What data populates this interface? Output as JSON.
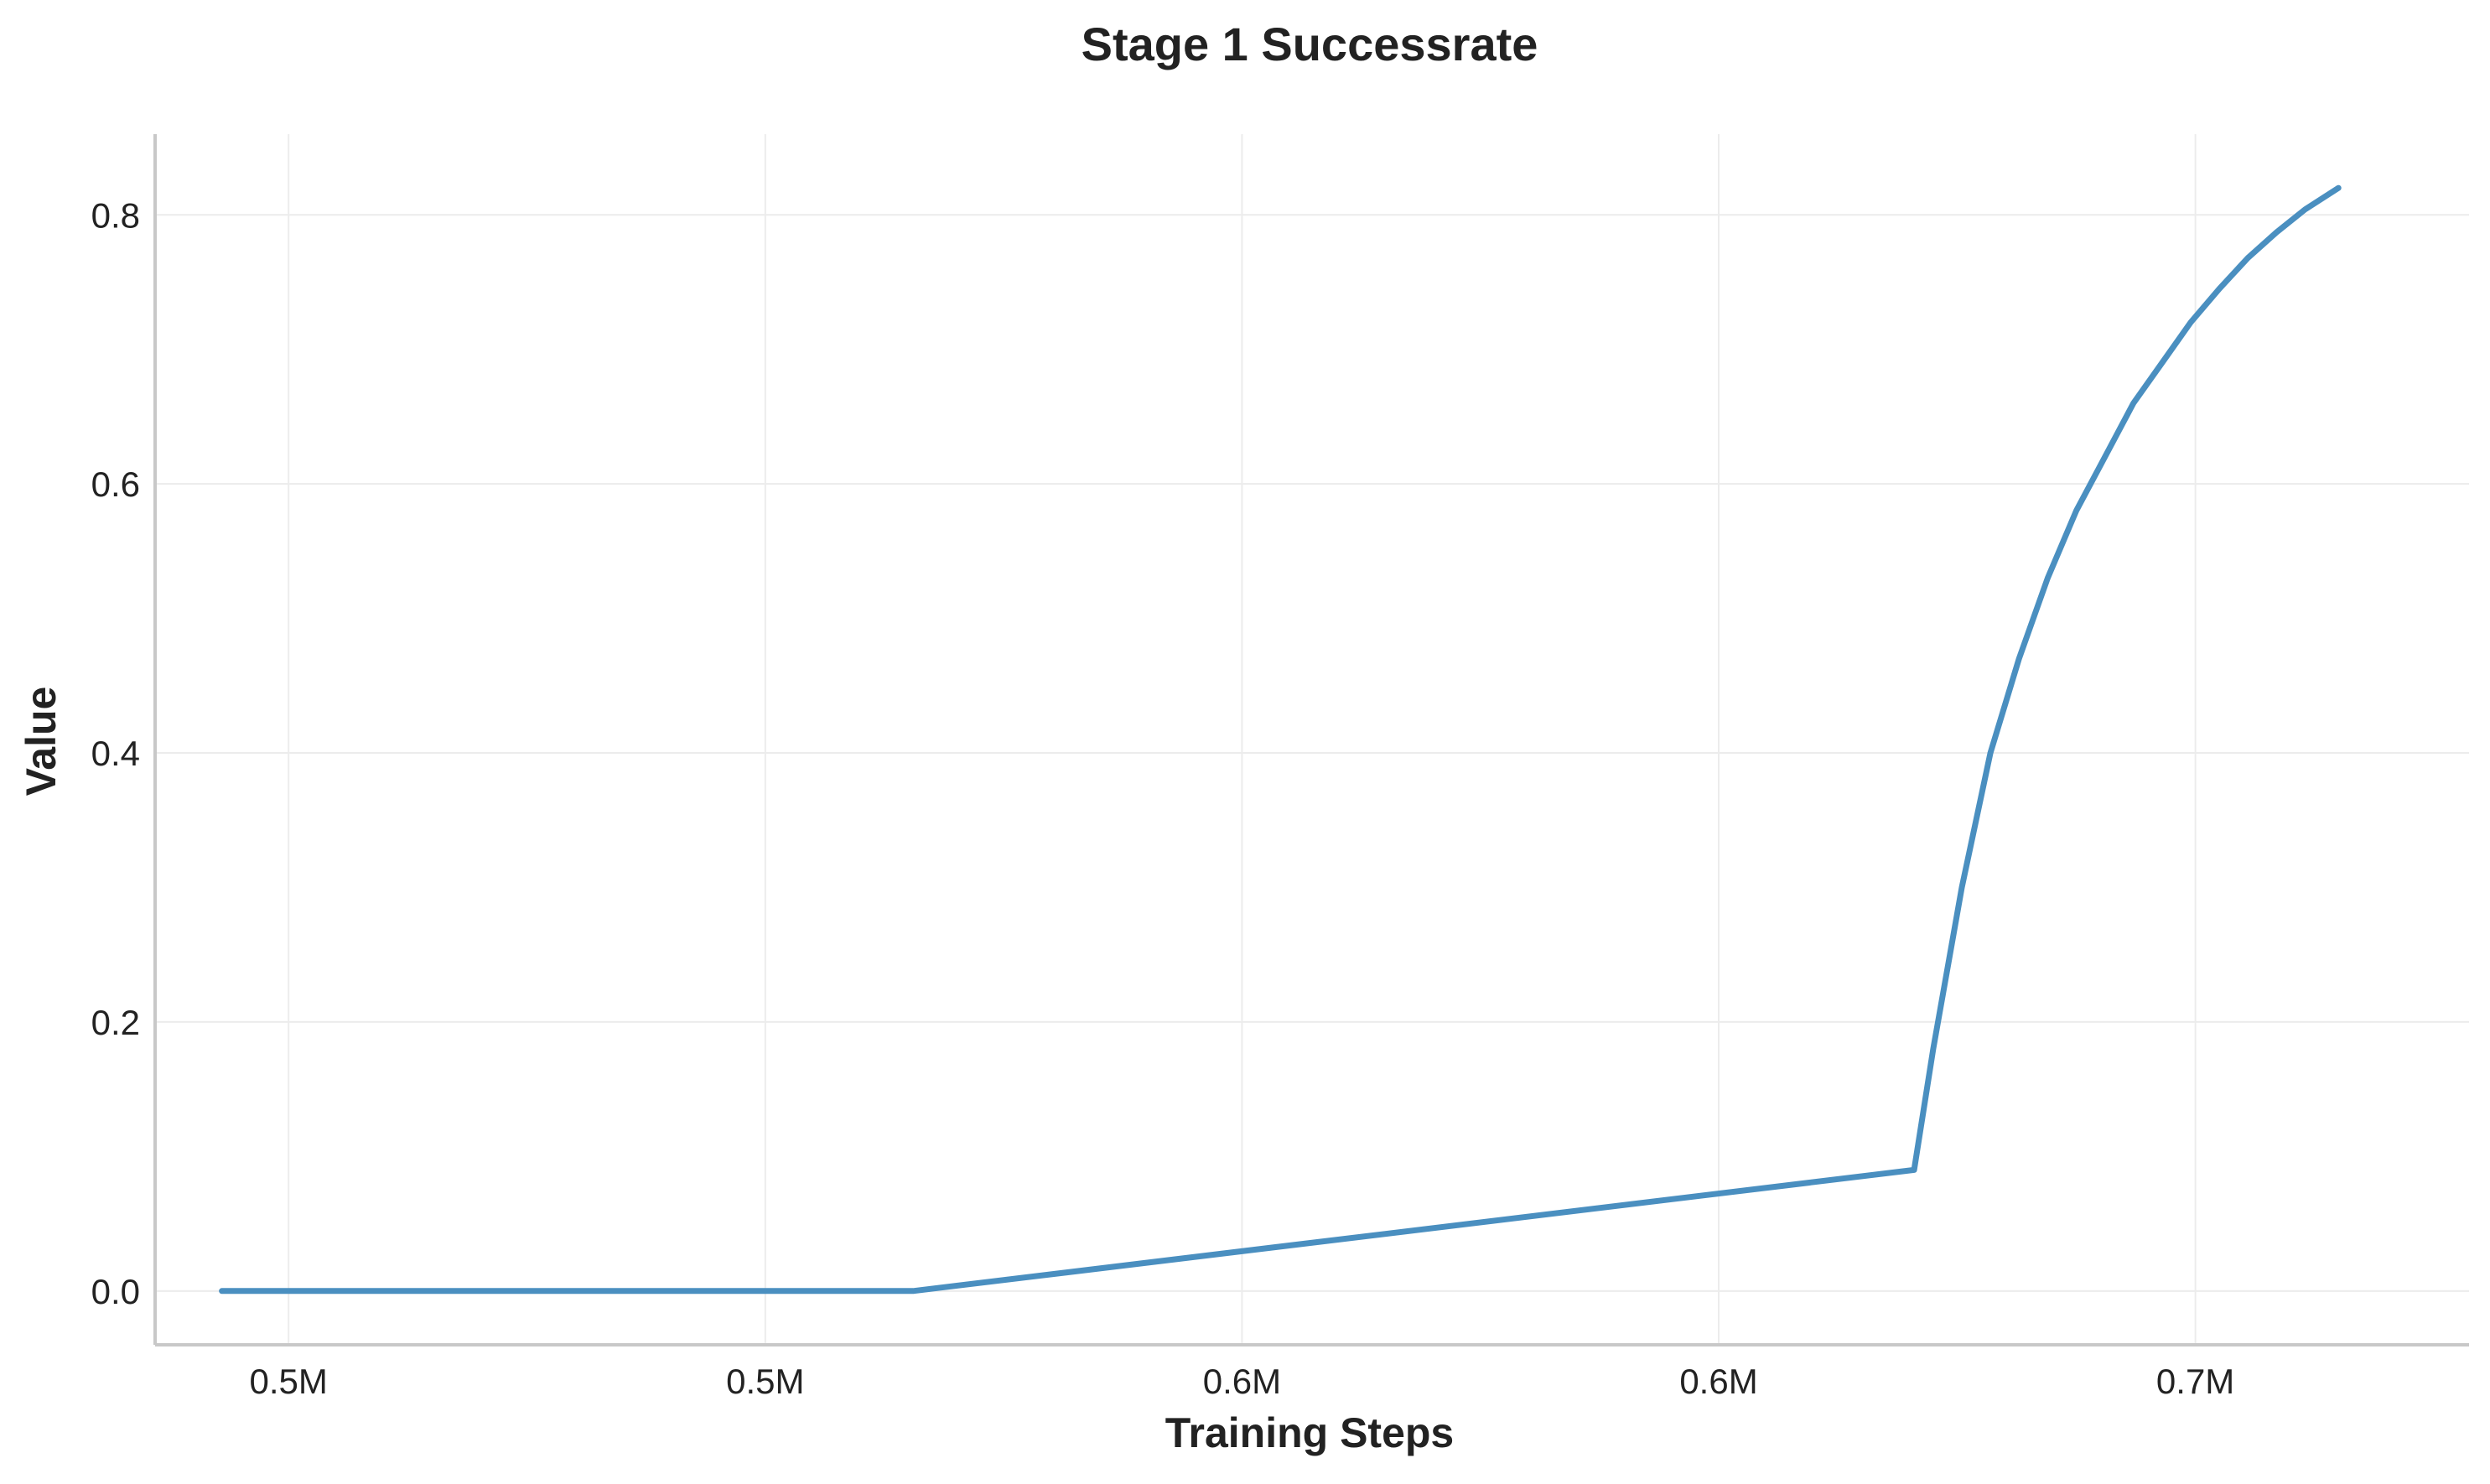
{
  "chart_data": {
    "type": "line",
    "title": "Stage 1 Successrate",
    "xlabel": "Training Steps",
    "ylabel": "Value",
    "xlim": [
      0.4785,
      0.7212
    ],
    "ylim": [
      -0.04,
      0.86
    ],
    "x_ticks": [
      {
        "value": 0.4925,
        "label": "0.5M"
      },
      {
        "value": 0.5425,
        "label": "0.5M"
      },
      {
        "value": 0.5925,
        "label": "0.6M"
      },
      {
        "value": 0.6425,
        "label": "0.6M"
      },
      {
        "value": 0.6925,
        "label": "0.7M"
      }
    ],
    "y_ticks": [
      {
        "value": 0.0,
        "label": "0.0"
      },
      {
        "value": 0.2,
        "label": "0.2"
      },
      {
        "value": 0.4,
        "label": "0.4"
      },
      {
        "value": 0.6,
        "label": "0.6"
      },
      {
        "value": 0.8,
        "label": "0.8"
      }
    ],
    "grid": true,
    "series": [
      {
        "color": "#4a8fc0",
        "x": [
          0.4855,
          0.558,
          0.663,
          0.665,
          0.668,
          0.671,
          0.674,
          0.677,
          0.68,
          0.683,
          0.686,
          0.689,
          0.692,
          0.695,
          0.698,
          0.701,
          0.704,
          0.7075
        ],
        "y": [
          0.0,
          0.0,
          0.09,
          0.18,
          0.3,
          0.4,
          0.47,
          0.53,
          0.58,
          0.62,
          0.66,
          0.69,
          0.72,
          0.745,
          0.768,
          0.787,
          0.804,
          0.82
        ]
      }
    ]
  }
}
